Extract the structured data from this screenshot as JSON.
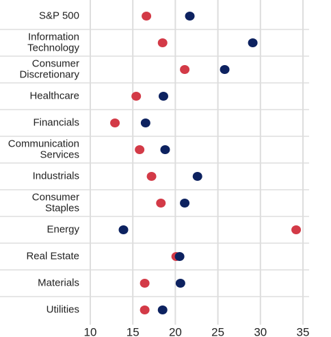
{
  "chart_data": {
    "type": "dot",
    "categories": [
      "S&P 500",
      "Information\nTechnology",
      "Consumer\nDiscretionary",
      "Healthcare",
      "Financials",
      "Communication\nServices",
      "Industrials",
      "Consumer\nStaples",
      "Energy",
      "Real Estate",
      "Materials",
      "Utilities"
    ],
    "series": [
      {
        "color": "#d33a47",
        "values": [
          16.6,
          18.5,
          21.1,
          15.4,
          12.9,
          15.8,
          17.2,
          18.3,
          34.2,
          20.1,
          16.4,
          16.4
        ]
      },
      {
        "color": "#0d2260",
        "values": [
          21.7,
          29.1,
          25.8,
          18.6,
          16.5,
          18.8,
          22.6,
          21.1,
          13.9,
          20.5,
          20.6,
          18.5
        ]
      }
    ],
    "xlim": [
      10,
      35
    ],
    "xticks": [
      10,
      15,
      20,
      25,
      30,
      35
    ],
    "grid": true
  }
}
